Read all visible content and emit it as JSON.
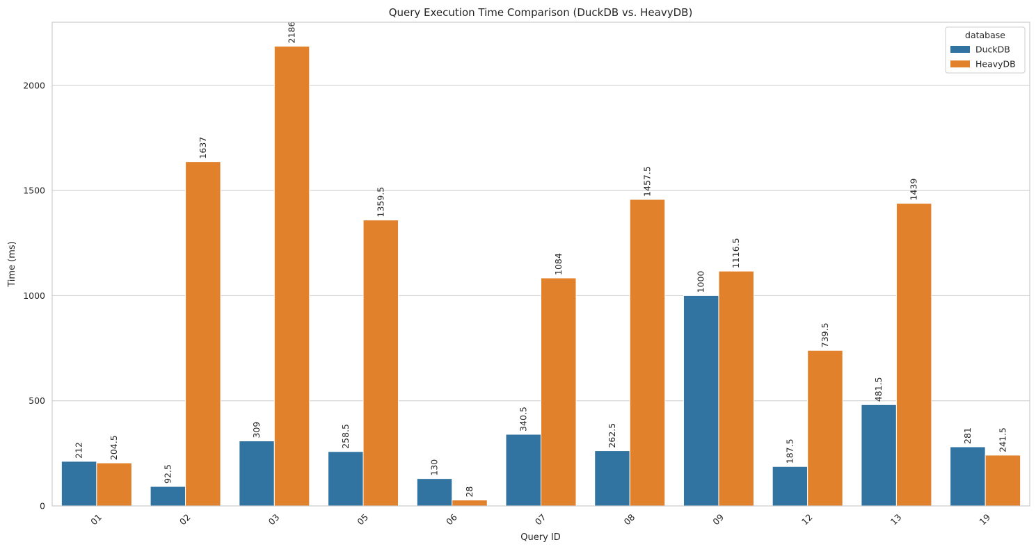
{
  "chart_data": {
    "type": "bar",
    "title": "Query Execution Time Comparison (DuckDB vs. HeavyDB)",
    "xlabel": "Query ID",
    "ylabel": "Time (ms)",
    "ylim": [
      0,
      2300
    ],
    "yticks": [
      0,
      500,
      1000,
      1500,
      2000
    ],
    "grid": true,
    "legend": {
      "title": "database",
      "placement": "top-right"
    },
    "categories": [
      "01",
      "02",
      "03",
      "05",
      "06",
      "07",
      "08",
      "09",
      "12",
      "13",
      "19"
    ],
    "series": [
      {
        "name": "DuckDB",
        "color": "#3274a1",
        "values": [
          212,
          92.5,
          309,
          258.5,
          130,
          340.5,
          262.5,
          1000,
          187.5,
          481.5,
          281
        ],
        "labels": [
          "212",
          "92.5",
          "309",
          "258.5",
          "130",
          "340.5",
          "262.5",
          "1000",
          "187.5",
          "481.5",
          "281"
        ]
      },
      {
        "name": "HeavyDB",
        "color": "#e1812c",
        "values": [
          204.5,
          1637,
          2186,
          1359.5,
          28,
          1084,
          1457.5,
          1116.5,
          739.5,
          1439,
          241.5
        ],
        "labels": [
          "204.5",
          "1637",
          "2186",
          "1359.5",
          "28",
          "1084",
          "1457.5",
          "1116.5",
          "739.5",
          "1439",
          "241.5"
        ]
      }
    ]
  }
}
